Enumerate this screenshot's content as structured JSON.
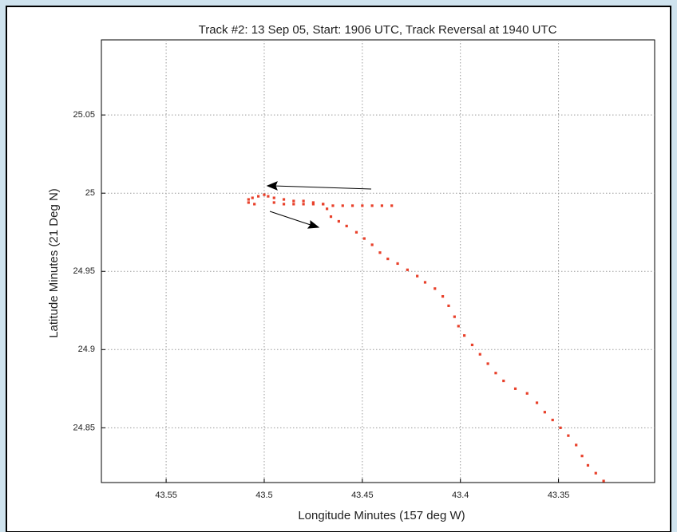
{
  "chart_data": {
    "type": "scatter",
    "title": "Track #2: 13 Sep 05, Start: 1906 UTC, Track Reversal at 1940 UTC",
    "x_label": "Longitude Minutes (157 deg W)",
    "y_label": "Latitude Minutes (21 Deg N)",
    "xlim": [
      43.583,
      43.301
    ],
    "ylim": [
      24.815,
      25.098
    ],
    "xticks": [
      43.55,
      43.5,
      43.45,
      43.4,
      43.35
    ],
    "yticks": [
      24.85,
      24.9,
      24.95,
      25,
      25.05
    ],
    "grid": true,
    "color": "#e8402a",
    "x": [
      43.508,
      43.506,
      43.503,
      43.5,
      43.498,
      43.495,
      43.49,
      43.485,
      43.48,
      43.475,
      43.47,
      43.468,
      43.466,
      43.462,
      43.458,
      43.453,
      43.449,
      43.445,
      43.441,
      43.437,
      43.432,
      43.427,
      43.422,
      43.418,
      43.413,
      43.409,
      43.406,
      43.403,
      43.401,
      43.398,
      43.394,
      43.39,
      43.386,
      43.382,
      43.378,
      43.372,
      43.366,
      43.361,
      43.357,
      43.353,
      43.349,
      43.345,
      43.341,
      43.338,
      43.335,
      43.331,
      43.327,
      43.495,
      43.49,
      43.485,
      43.48,
      43.475,
      43.47,
      43.465,
      43.46,
      43.455,
      43.45,
      43.445,
      43.44,
      43.435,
      43.508,
      43.505
    ],
    "y": [
      24.996,
      24.997,
      24.998,
      24.999,
      24.998,
      24.997,
      24.996,
      24.995,
      24.995,
      24.994,
      24.993,
      24.99,
      24.985,
      24.982,
      24.979,
      24.975,
      24.971,
      24.967,
      24.962,
      24.958,
      24.955,
      24.951,
      24.947,
      24.943,
      24.939,
      24.934,
      24.928,
      24.921,
      24.915,
      24.909,
      24.903,
      24.897,
      24.891,
      24.885,
      24.88,
      24.875,
      24.872,
      24.866,
      24.86,
      24.855,
      24.85,
      24.845,
      24.839,
      24.832,
      24.826,
      24.821,
      24.816,
      24.994,
      24.993,
      24.993,
      24.993,
      24.993,
      24.993,
      24.992,
      24.992,
      24.992,
      24.992,
      24.992,
      24.992,
      24.992,
      24.994,
      24.993
    ]
  }
}
